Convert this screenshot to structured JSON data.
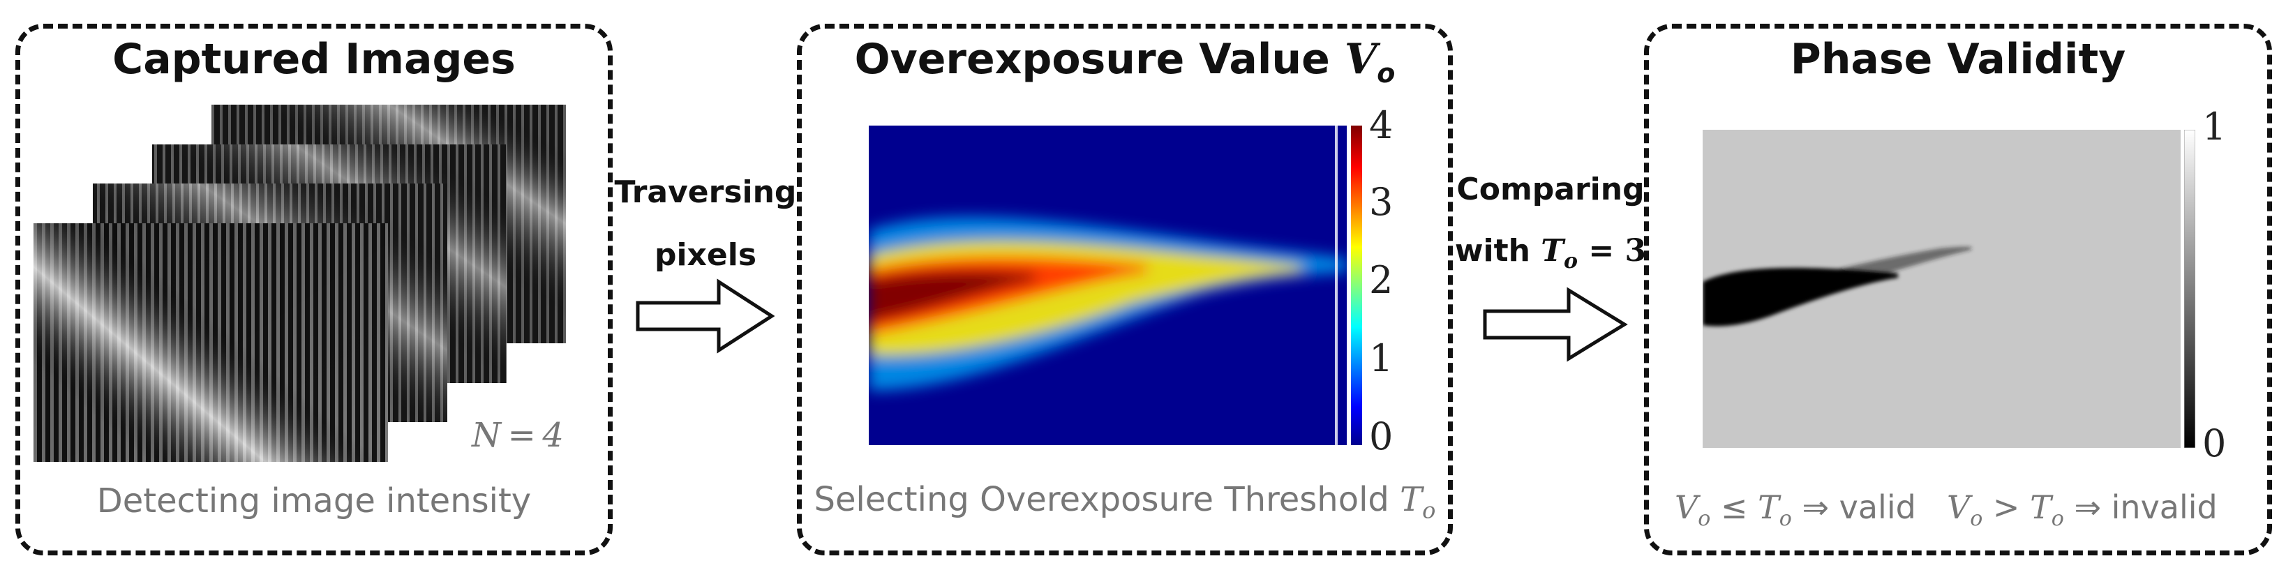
{
  "panel1": {
    "title": "Captured Images",
    "n_label": "N = 4",
    "caption": "Detecting image intensity"
  },
  "arrow1": {
    "line1": "Traversing",
    "line2": "pixels"
  },
  "panel2": {
    "title_text": "Overexposure Value ",
    "title_var": "V",
    "title_sub": "o",
    "caption_text": "Selecting Overexposure Threshold ",
    "caption_var": "T",
    "caption_sub": "o",
    "colorbar_ticks": [
      "4",
      "3",
      "2",
      "1",
      "0"
    ],
    "colormap": [
      "#00008f",
      "#0000ff",
      "#00ffff",
      "#ffff00",
      "#ff0000",
      "#800000"
    ]
  },
  "arrow2": {
    "line1": "Comparing",
    "line2_text": "with ",
    "line2_var": "T",
    "line2_sub": "o",
    "line2_rest": " = 3"
  },
  "panel3": {
    "title": "Phase Validity",
    "colorbar_ticks": [
      "1",
      "0"
    ],
    "valid": {
      "lhs": "V",
      "lhs_sub": "o",
      "op": " ≤ ",
      "rhs": "T",
      "rhs_sub": "o",
      "arrow": " ⇒ ",
      "word": "valid"
    },
    "invalid": {
      "lhs": "V",
      "lhs_sub": "o",
      "op": " > ",
      "rhs": "T",
      "rhs_sub": "o",
      "arrow": " ⇒ ",
      "word": "invalid"
    }
  },
  "colors": {
    "border": "#111111",
    "caption": "#777777",
    "valid_gray": "#c8c8c8",
    "plot_bg": "#00008f"
  }
}
